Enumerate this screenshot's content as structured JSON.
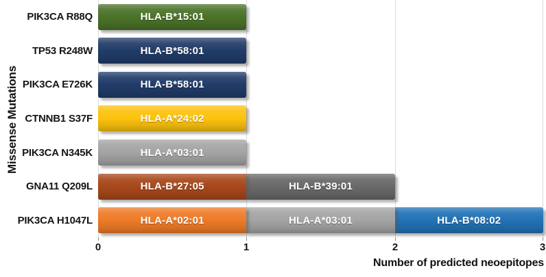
{
  "chart_data": {
    "type": "bar",
    "orientation": "horizontal",
    "stacked": true,
    "title": "",
    "xlabel": "Number of predicted neoepitopes",
    "ylabel": "Missense Mutations",
    "xlim": [
      0,
      3
    ],
    "xticks": [
      "0",
      "1",
      "2",
      "3"
    ],
    "grid": "vertical",
    "legend": "none",
    "bar_label_color": "#ffffff",
    "grid_color": "#d9d9d9",
    "rows": [
      {
        "category": "PIK3CA R88Q",
        "total": 1,
        "segments": [
          {
            "label": "HLA-B*15:01",
            "value": 1,
            "color": "#4a7228"
          }
        ]
      },
      {
        "category": "TP53 R248W",
        "total": 1,
        "segments": [
          {
            "label": "HLA-B*58:01",
            "value": 1,
            "color": "#213c69"
          }
        ]
      },
      {
        "category": "PIK3CA E726K",
        "total": 1,
        "segments": [
          {
            "label": "HLA-B*58:01",
            "value": 1,
            "color": "#213c69"
          }
        ]
      },
      {
        "category": "CTNNB1 S37F",
        "total": 1,
        "segments": [
          {
            "label": "HLA-A*24:02",
            "value": 1,
            "color": "#fdc20e"
          }
        ]
      },
      {
        "category": "PIK3CA N345K",
        "total": 1,
        "segments": [
          {
            "label": "HLA-A*03:01",
            "value": 1,
            "color": "#a4a4a4"
          }
        ]
      },
      {
        "category": "GNA11 Q209L",
        "total": 2,
        "segments": [
          {
            "label": "HLA-B*27:05",
            "value": 1,
            "color": "#a7481b"
          },
          {
            "label": "HLA-B*39:01",
            "value": 1,
            "color": "#696969"
          }
        ]
      },
      {
        "category": "PIK3CA H1047L",
        "total": 3,
        "segments": [
          {
            "label": "HLA-A*02:01",
            "value": 1,
            "color": "#ee7b28"
          },
          {
            "label": "HLA-A*03:01",
            "value": 1,
            "color": "#a4a4a4"
          },
          {
            "label": "HLA-B*08:02",
            "value": 1,
            "color": "#2272b5"
          }
        ]
      }
    ]
  }
}
